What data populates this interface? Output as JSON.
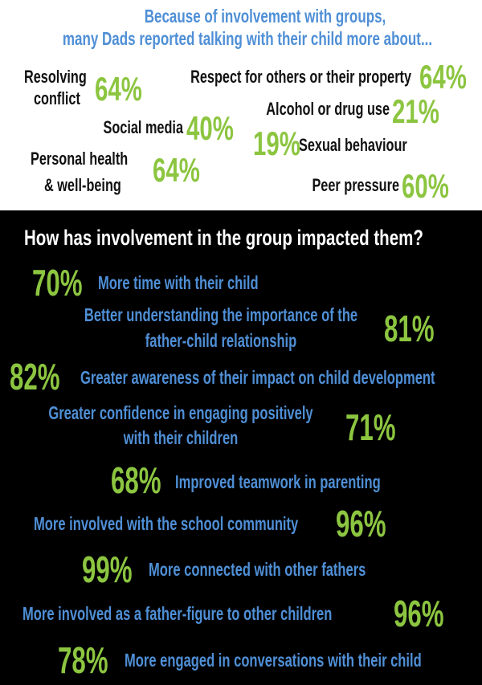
{
  "top": {
    "title": [
      "Because of involvement with groups,",
      "many Dads reported talking with their child more about..."
    ],
    "items": [
      {
        "label": [
          "Resolving",
          "conflict"
        ],
        "value": "64%"
      },
      {
        "label": [
          "Respect for others or their property"
        ],
        "value": "64%"
      },
      {
        "label": [
          "Alcohol or drug use"
        ],
        "value": "21%"
      },
      {
        "label": [
          "Social media"
        ],
        "value": "40%"
      },
      {
        "label": [
          "Sexual behaviour"
        ],
        "value": "19%"
      },
      {
        "label": [
          "Personal health",
          "& well-being"
        ],
        "value": "64%"
      },
      {
        "label": [
          "Peer pressure"
        ],
        "value": "60%"
      }
    ]
  },
  "bottom": {
    "title": "How has involvement in the group impacted them?",
    "items": [
      {
        "label": [
          "More time with their child"
        ],
        "value": "70%"
      },
      {
        "label": [
          "Better understanding the importance of the",
          "father-child relationship"
        ],
        "value": "81%"
      },
      {
        "label": [
          "Greater awareness of their impact on child development"
        ],
        "value": "82%"
      },
      {
        "label": [
          "Greater confidence in engaging positively",
          "with their children"
        ],
        "value": "71%"
      },
      {
        "label": [
          "Improved teamwork in parenting"
        ],
        "value": "68%"
      },
      {
        "label": [
          "More involved with the school community"
        ],
        "value": "96%"
      },
      {
        "label": [
          "More connected with other fathers"
        ],
        "value": "99%"
      },
      {
        "label": [
          "More involved as a father-figure to other children"
        ],
        "value": "96%"
      },
      {
        "label": [
          "More engaged in conversations with their child"
        ],
        "value": "78%"
      }
    ]
  }
}
